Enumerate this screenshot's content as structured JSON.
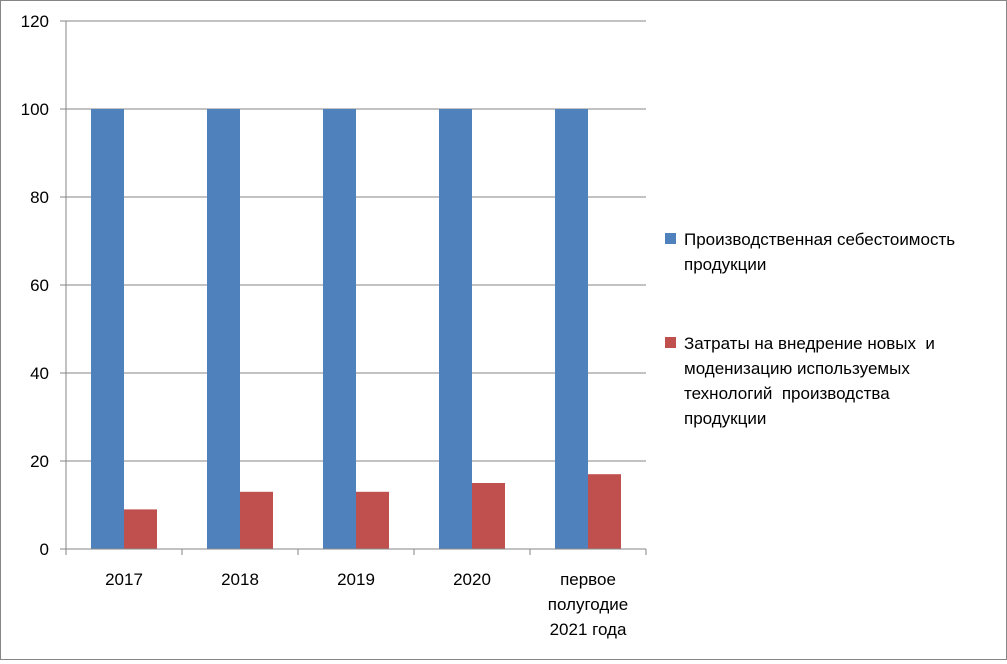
{
  "chart_data": {
    "type": "bar",
    "categories": [
      "2017",
      "2018",
      "2019",
      "2020",
      "первое полугодие 2021 года"
    ],
    "category_lines": [
      [
        "2017"
      ],
      [
        "2018"
      ],
      [
        "2019"
      ],
      [
        "2020"
      ],
      [
        "первое",
        "полугодие",
        "2021 года"
      ]
    ],
    "series": [
      {
        "name": "Производственная себестоимость продукции",
        "values": [
          100,
          100,
          100,
          100,
          100
        ],
        "color": "#4F81BD"
      },
      {
        "name": "Затраты на внедрение новых  и моденизацию используемых технологий  производства продукции",
        "values": [
          9,
          13,
          13,
          15,
          17
        ],
        "color": "#C0504D"
      }
    ],
    "legend": [
      {
        "text": "Производственная себестоимость\nпродукции",
        "color": "#4F81BD"
      },
      {
        "text": "Затраты на внедрение новых  и\nмоденизацию используемых\nтехнологий  производства\nпродукции",
        "color": "#C0504D"
      }
    ],
    "yticks": [
      0,
      20,
      40,
      60,
      80,
      100,
      120
    ],
    "ylim": [
      0,
      120
    ],
    "grid": true,
    "legend_position": "right",
    "title": "",
    "xlabel": "",
    "ylabel": ""
  }
}
